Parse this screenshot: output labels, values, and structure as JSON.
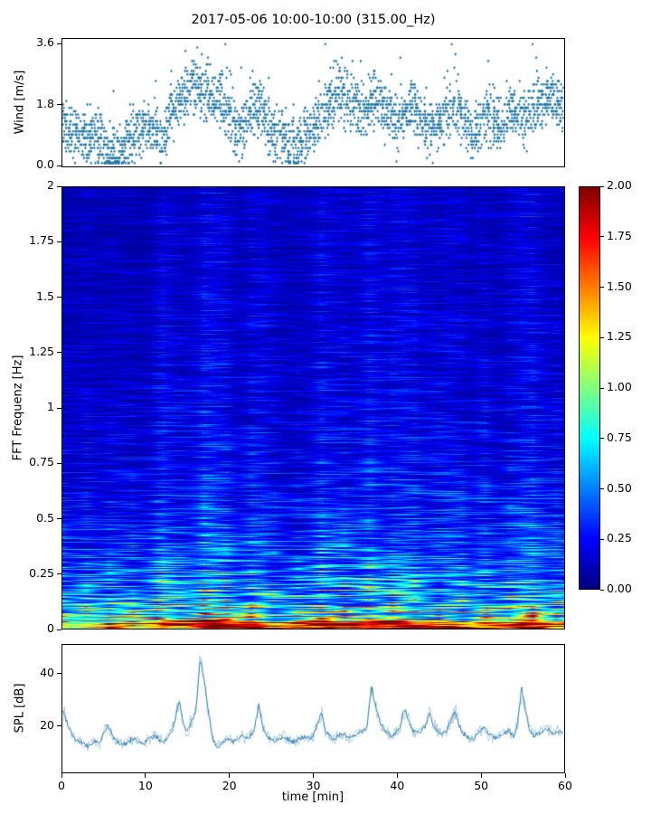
{
  "chart_meta": {
    "title": "2017-05-06 10:00-10:00 (315.00_Hz)",
    "xlabel": "time [min]",
    "xlim": [
      0,
      60
    ],
    "xticks": [
      0,
      10,
      20,
      30,
      40,
      50,
      60
    ],
    "series_color": "#2077a8",
    "background": "#ffffff"
  },
  "chart_data": [
    {
      "type": "scatter",
      "ylabel": "Wind [m/s]",
      "xlim": [
        0,
        60
      ],
      "ylim": [
        0,
        3.6
      ],
      "yticks": [
        0.0,
        1.8,
        3.6
      ],
      "ytick_labels": [
        "0.0",
        "1.8",
        "3.6"
      ],
      "marker": "diamond",
      "color": "#2077a8",
      "points_per_minute": 45,
      "quantization": 0.1,
      "spread": 0.5,
      "mean_profile": [
        1.2,
        1.0,
        0.9,
        0.8,
        0.9,
        0.5,
        0.3,
        0.4,
        0.8,
        0.9,
        1.2,
        1.0,
        0.6,
        1.5,
        2.0,
        2.2,
        2.4,
        2.2,
        2.0,
        1.8,
        1.6,
        0.8,
        1.2,
        1.8,
        1.5,
        1.0,
        0.9,
        0.7,
        0.5,
        0.8,
        1.2,
        1.5,
        1.8,
        2.2,
        2.0,
        1.8,
        1.5,
        2.0,
        1.8,
        1.5,
        1.2,
        1.5,
        1.8,
        1.3,
        1.0,
        1.2,
        1.5,
        1.8,
        1.2,
        1.0,
        1.3,
        1.5,
        1.2,
        1.4,
        1.6,
        1.3,
        1.5,
        1.8,
        2.0,
        1.9,
        1.8
      ]
    },
    {
      "type": "heatmap",
      "ylabel": "FFT Frequenz [Hz]",
      "xlim": [
        0,
        60
      ],
      "ylim": [
        0,
        2
      ],
      "yticks": [
        0,
        0.25,
        0.5,
        0.75,
        1,
        1.25,
        1.5,
        1.75,
        2
      ],
      "ytick_labels": [
        "0",
        "0.25",
        "0.5",
        "0.75",
        "1",
        "1.25",
        "1.5",
        "1.75",
        "2"
      ],
      "colormap": "jet",
      "clim": [
        0,
        2
      ],
      "colorbar_tick_labels": [
        "0.00",
        "0.25",
        "0.50",
        "0.75",
        "1.00",
        "1.25",
        "1.50",
        "1.75",
        "2.00"
      ],
      "freq_profile": "intensity decays with frequency; strongest below 0.15 Hz, mostly dark blue above 1 Hz with lighter vertical streaks during active periods",
      "column_activity": [
        0.3,
        0.25,
        0.3,
        0.35,
        0.3,
        0.25,
        0.3,
        0.35,
        0.3,
        0.25,
        0.3,
        0.4,
        0.75,
        0.6,
        0.4,
        0.45,
        0.55,
        0.8,
        0.85,
        0.7,
        0.5,
        0.4,
        0.45,
        0.6,
        0.65,
        0.4,
        0.35,
        0.3,
        0.3,
        0.35,
        0.5,
        0.7,
        0.65,
        0.55,
        0.45,
        0.5,
        0.6,
        0.75,
        0.6,
        0.5,
        0.65,
        0.7,
        0.55,
        0.45,
        0.5,
        0.45,
        0.6,
        0.55,
        0.4,
        0.35,
        0.5,
        0.4,
        0.35,
        0.4,
        0.55,
        0.75,
        0.7,
        0.6,
        0.45,
        0.4
      ],
      "low_freq_band": [
        0.5,
        0.4,
        0.45,
        0.5,
        0.45,
        0.4,
        0.45,
        0.5,
        0.45,
        0.4,
        0.5,
        0.55,
        0.6,
        0.55,
        0.5,
        0.55,
        0.7,
        0.9,
        0.95,
        0.9,
        0.85,
        0.8,
        0.85,
        0.8,
        0.6,
        0.5,
        0.45,
        0.4,
        0.45,
        0.5,
        0.6,
        0.8,
        0.85,
        0.8,
        0.85,
        0.9,
        0.85,
        0.9,
        0.85,
        0.8,
        0.85,
        0.9,
        0.85,
        0.8,
        0.75,
        0.6,
        0.65,
        0.7,
        0.6,
        0.55,
        0.6,
        0.65,
        0.7,
        0.65,
        0.7,
        0.75,
        0.8,
        0.75,
        0.7,
        0.65
      ]
    },
    {
      "type": "line",
      "ylabel": "SPL [dB]",
      "xlabel": "time [min]",
      "xlim": [
        0,
        60
      ],
      "yticks": [
        20,
        40
      ],
      "ytick_labels": [
        "20",
        "40"
      ],
      "color": "#2077a8",
      "x_step_min": 0.5,
      "values": [
        26,
        22,
        18,
        15,
        14,
        13,
        12,
        13,
        14,
        13,
        18,
        20,
        16,
        14,
        13,
        13,
        14,
        15,
        14,
        13,
        14,
        15,
        16,
        15,
        14,
        15,
        17,
        22,
        30,
        20,
        18,
        22,
        26,
        45,
        38,
        25,
        15,
        12,
        13,
        14,
        15,
        14,
        15,
        16,
        15,
        16,
        18,
        28,
        20,
        16,
        15,
        14,
        15,
        16,
        15,
        14,
        14,
        15,
        16,
        15,
        16,
        20,
        25,
        18,
        16,
        15,
        16,
        17,
        16,
        15,
        16,
        17,
        18,
        20,
        35,
        28,
        22,
        18,
        17,
        16,
        17,
        20,
        27,
        22,
        18,
        17,
        18,
        20,
        25,
        20,
        18,
        17,
        18,
        22,
        26,
        20,
        17,
        16,
        15,
        16,
        18,
        20,
        17,
        16,
        15,
        16,
        17,
        18,
        16,
        20,
        35,
        25,
        18,
        16,
        17,
        18,
        19,
        18,
        17,
        18,
        17
      ]
    }
  ]
}
